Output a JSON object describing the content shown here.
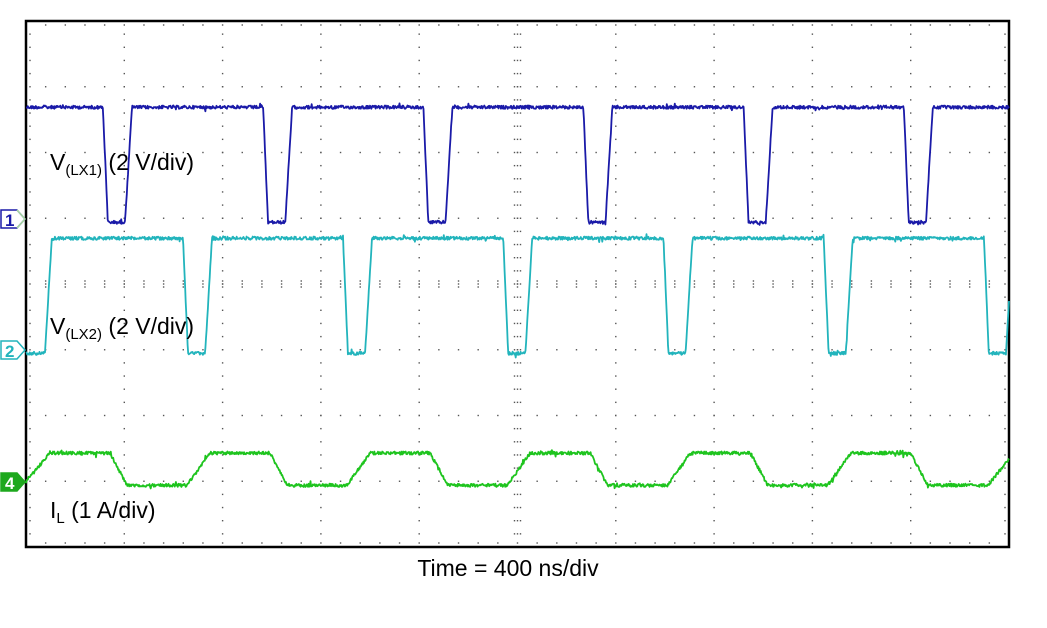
{
  "chart_data": {
    "type": "line",
    "title": "",
    "xlabel": "Time = 400 ns/div",
    "x_unit": "ns",
    "xlim": [
      0,
      4000
    ],
    "grid": "dotted",
    "horizontal_divisions": 10,
    "vertical_divisions": 8,
    "series": [
      {
        "name": "V(LX1) (2 V/div)",
        "label_main": "V",
        "label_sub": "(LX1)",
        "label_rest": " (2 V/div)",
        "channel": "1",
        "unit": "V",
        "scale_per_div": 2,
        "color": "#1a1aa8",
        "points": [
          [
            0,
            3.4
          ],
          [
            313,
            3.4
          ],
          [
            333,
            -0.1
          ],
          [
            403,
            -0.1
          ],
          [
            431,
            3.4
          ],
          [
            965,
            3.4
          ],
          [
            985,
            -0.1
          ],
          [
            1055,
            -0.1
          ],
          [
            1083,
            3.4
          ],
          [
            1617,
            3.4
          ],
          [
            1637,
            -0.1
          ],
          [
            1707,
            -0.1
          ],
          [
            1735,
            3.4
          ],
          [
            2268,
            3.4
          ],
          [
            2288,
            -0.1
          ],
          [
            2358,
            -0.1
          ],
          [
            2386,
            3.4
          ],
          [
            2920,
            3.4
          ],
          [
            2940,
            -0.1
          ],
          [
            3010,
            -0.1
          ],
          [
            3038,
            3.4
          ],
          [
            3572,
            3.4
          ],
          [
            3592,
            -0.1
          ],
          [
            3662,
            -0.1
          ],
          [
            3690,
            3.4
          ],
          [
            4000,
            3.4
          ]
        ]
      },
      {
        "name": "V(LX2) (2 V/div)",
        "label_main": "V",
        "label_sub": "(LX2)",
        "label_rest": " (2 V/div)",
        "channel": "2",
        "unit": "V",
        "scale_per_div": 2,
        "color": "#22b4bc",
        "points": [
          [
            0,
            -0.1
          ],
          [
            77,
            -0.1
          ],
          [
            105,
            3.4
          ],
          [
            639,
            3.4
          ],
          [
            659,
            -0.1
          ],
          [
            729,
            -0.1
          ],
          [
            757,
            3.4
          ],
          [
            1290,
            3.4
          ],
          [
            1310,
            -0.1
          ],
          [
            1380,
            -0.1
          ],
          [
            1408,
            3.4
          ],
          [
            1942,
            3.4
          ],
          [
            1962,
            -0.1
          ],
          [
            2032,
            -0.1
          ],
          [
            2060,
            3.4
          ],
          [
            2594,
            3.4
          ],
          [
            2614,
            -0.1
          ],
          [
            2684,
            -0.1
          ],
          [
            2712,
            3.4
          ],
          [
            3246,
            3.4
          ],
          [
            3266,
            -0.1
          ],
          [
            3336,
            -0.1
          ],
          [
            3364,
            3.4
          ],
          [
            3898,
            3.4
          ],
          [
            3918,
            -0.1
          ],
          [
            3988,
            -0.1
          ],
          [
            4000,
            1.5
          ]
        ]
      },
      {
        "name": "IL (1 A/div)",
        "label_main": "I",
        "label_sub": "L",
        "label_rest": " (1 A/div)",
        "channel": "4",
        "unit": "A",
        "scale_per_div": 1,
        "color": "#1ec41e",
        "points": [
          [
            0,
            0.0
          ],
          [
            97,
            0.44
          ],
          [
            341,
            0.44
          ],
          [
            411,
            -0.05
          ],
          [
            655,
            -0.05
          ],
          [
            749,
            0.44
          ],
          [
            993,
            0.44
          ],
          [
            1063,
            -0.05
          ],
          [
            1306,
            -0.05
          ],
          [
            1400,
            0.44
          ],
          [
            1645,
            0.44
          ],
          [
            1715,
            -0.05
          ],
          [
            1958,
            -0.05
          ],
          [
            2052,
            0.44
          ],
          [
            2296,
            0.44
          ],
          [
            2366,
            -0.05
          ],
          [
            2610,
            -0.05
          ],
          [
            2704,
            0.44
          ],
          [
            2948,
            0.44
          ],
          [
            3018,
            -0.05
          ],
          [
            3262,
            -0.05
          ],
          [
            3356,
            0.44
          ],
          [
            3600,
            0.44
          ],
          [
            3670,
            -0.05
          ],
          [
            3914,
            -0.05
          ],
          [
            4000,
            0.35
          ]
        ]
      }
    ]
  }
}
